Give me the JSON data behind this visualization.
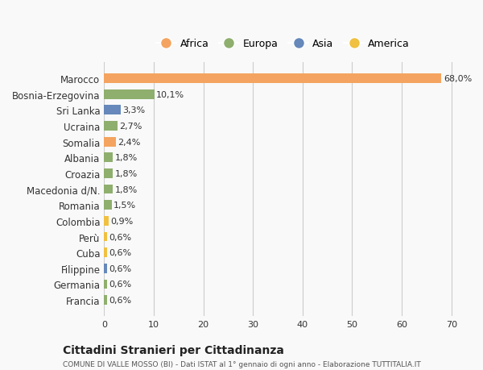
{
  "categories": [
    "Marocco",
    "Bosnia-Erzegovina",
    "Sri Lanka",
    "Ucraina",
    "Somalia",
    "Albania",
    "Croazia",
    "Macedonia d/N.",
    "Romania",
    "Colombia",
    "Perù",
    "Cuba",
    "Filippine",
    "Germania",
    "Francia"
  ],
  "values": [
    68.0,
    10.1,
    3.3,
    2.7,
    2.4,
    1.8,
    1.8,
    1.8,
    1.5,
    0.9,
    0.6,
    0.6,
    0.6,
    0.6,
    0.6
  ],
  "labels": [
    "68,0%",
    "10,1%",
    "3,3%",
    "2,7%",
    "2,4%",
    "1,8%",
    "1,8%",
    "1,8%",
    "1,5%",
    "0,9%",
    "0,6%",
    "0,6%",
    "0,6%",
    "0,6%",
    "0,6%"
  ],
  "colors": [
    "#F4A460",
    "#8FAF6E",
    "#6688BB",
    "#8FAF6E",
    "#F4A460",
    "#8FAF6E",
    "#8FAF6E",
    "#8FAF6E",
    "#8FAF6E",
    "#F0C040",
    "#F0C040",
    "#F0C040",
    "#6688BB",
    "#8FAF6E",
    "#8FAF6E"
  ],
  "legend_labels": [
    "Africa",
    "Europa",
    "Asia",
    "America"
  ],
  "legend_colors": [
    "#F4A460",
    "#8FAF6E",
    "#6688BB",
    "#F0C040"
  ],
  "title1": "Cittadini Stranieri per Cittadinanza",
  "title2": "COMUNE DI VALLE MOSSO (BI) - Dati ISTAT al 1° gennaio di ogni anno - Elaborazione TUTTITALIA.IT",
  "xlim": [
    0,
    72
  ],
  "xticks": [
    0,
    10,
    20,
    30,
    40,
    50,
    60,
    70
  ],
  "background_color": "#f9f9f9"
}
